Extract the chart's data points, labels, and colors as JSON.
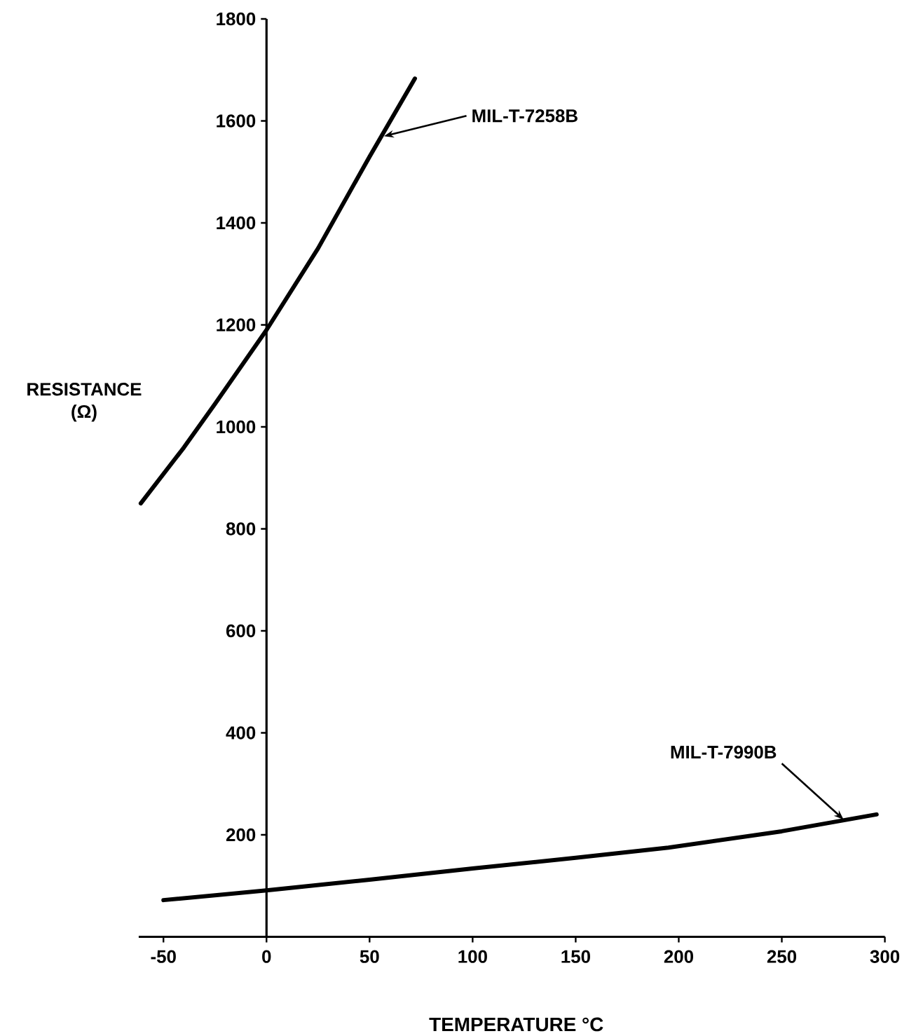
{
  "chart_data": {
    "type": "line",
    "xlabel": "TEMPERATURE °C",
    "ylabel": "RESISTANCE (Ω)",
    "xlim": [
      -62,
      300
    ],
    "ylim": [
      0,
      1800
    ],
    "xticks": [
      -50,
      0,
      50,
      100,
      150,
      200,
      250,
      300
    ],
    "yticks": [
      200,
      400,
      600,
      800,
      1000,
      1200,
      1400,
      1600,
      1800
    ],
    "grid": false,
    "marker": "none",
    "line_style": "solid",
    "series": [
      {
        "color": "#000000",
        "x": [
          -61,
          -40,
          -25,
          0,
          25,
          50,
          72
        ],
        "values": [
          850,
          960,
          1045,
          1190,
          1350,
          1530,
          1683
        ]
      },
      {
        "color": "#000000",
        "x": [
          -50,
          0,
          50,
          100,
          150,
          195,
          250,
          296
        ],
        "values": [
          72,
          91,
          112,
          134,
          155,
          175,
          207,
          240
        ]
      }
    ],
    "annotations": [
      {
        "text": "MIL-T-7258B",
        "x": 57,
        "y": 1570
      },
      {
        "text": "MIL-T-7990B",
        "x": 280,
        "y": 230
      }
    ]
  }
}
